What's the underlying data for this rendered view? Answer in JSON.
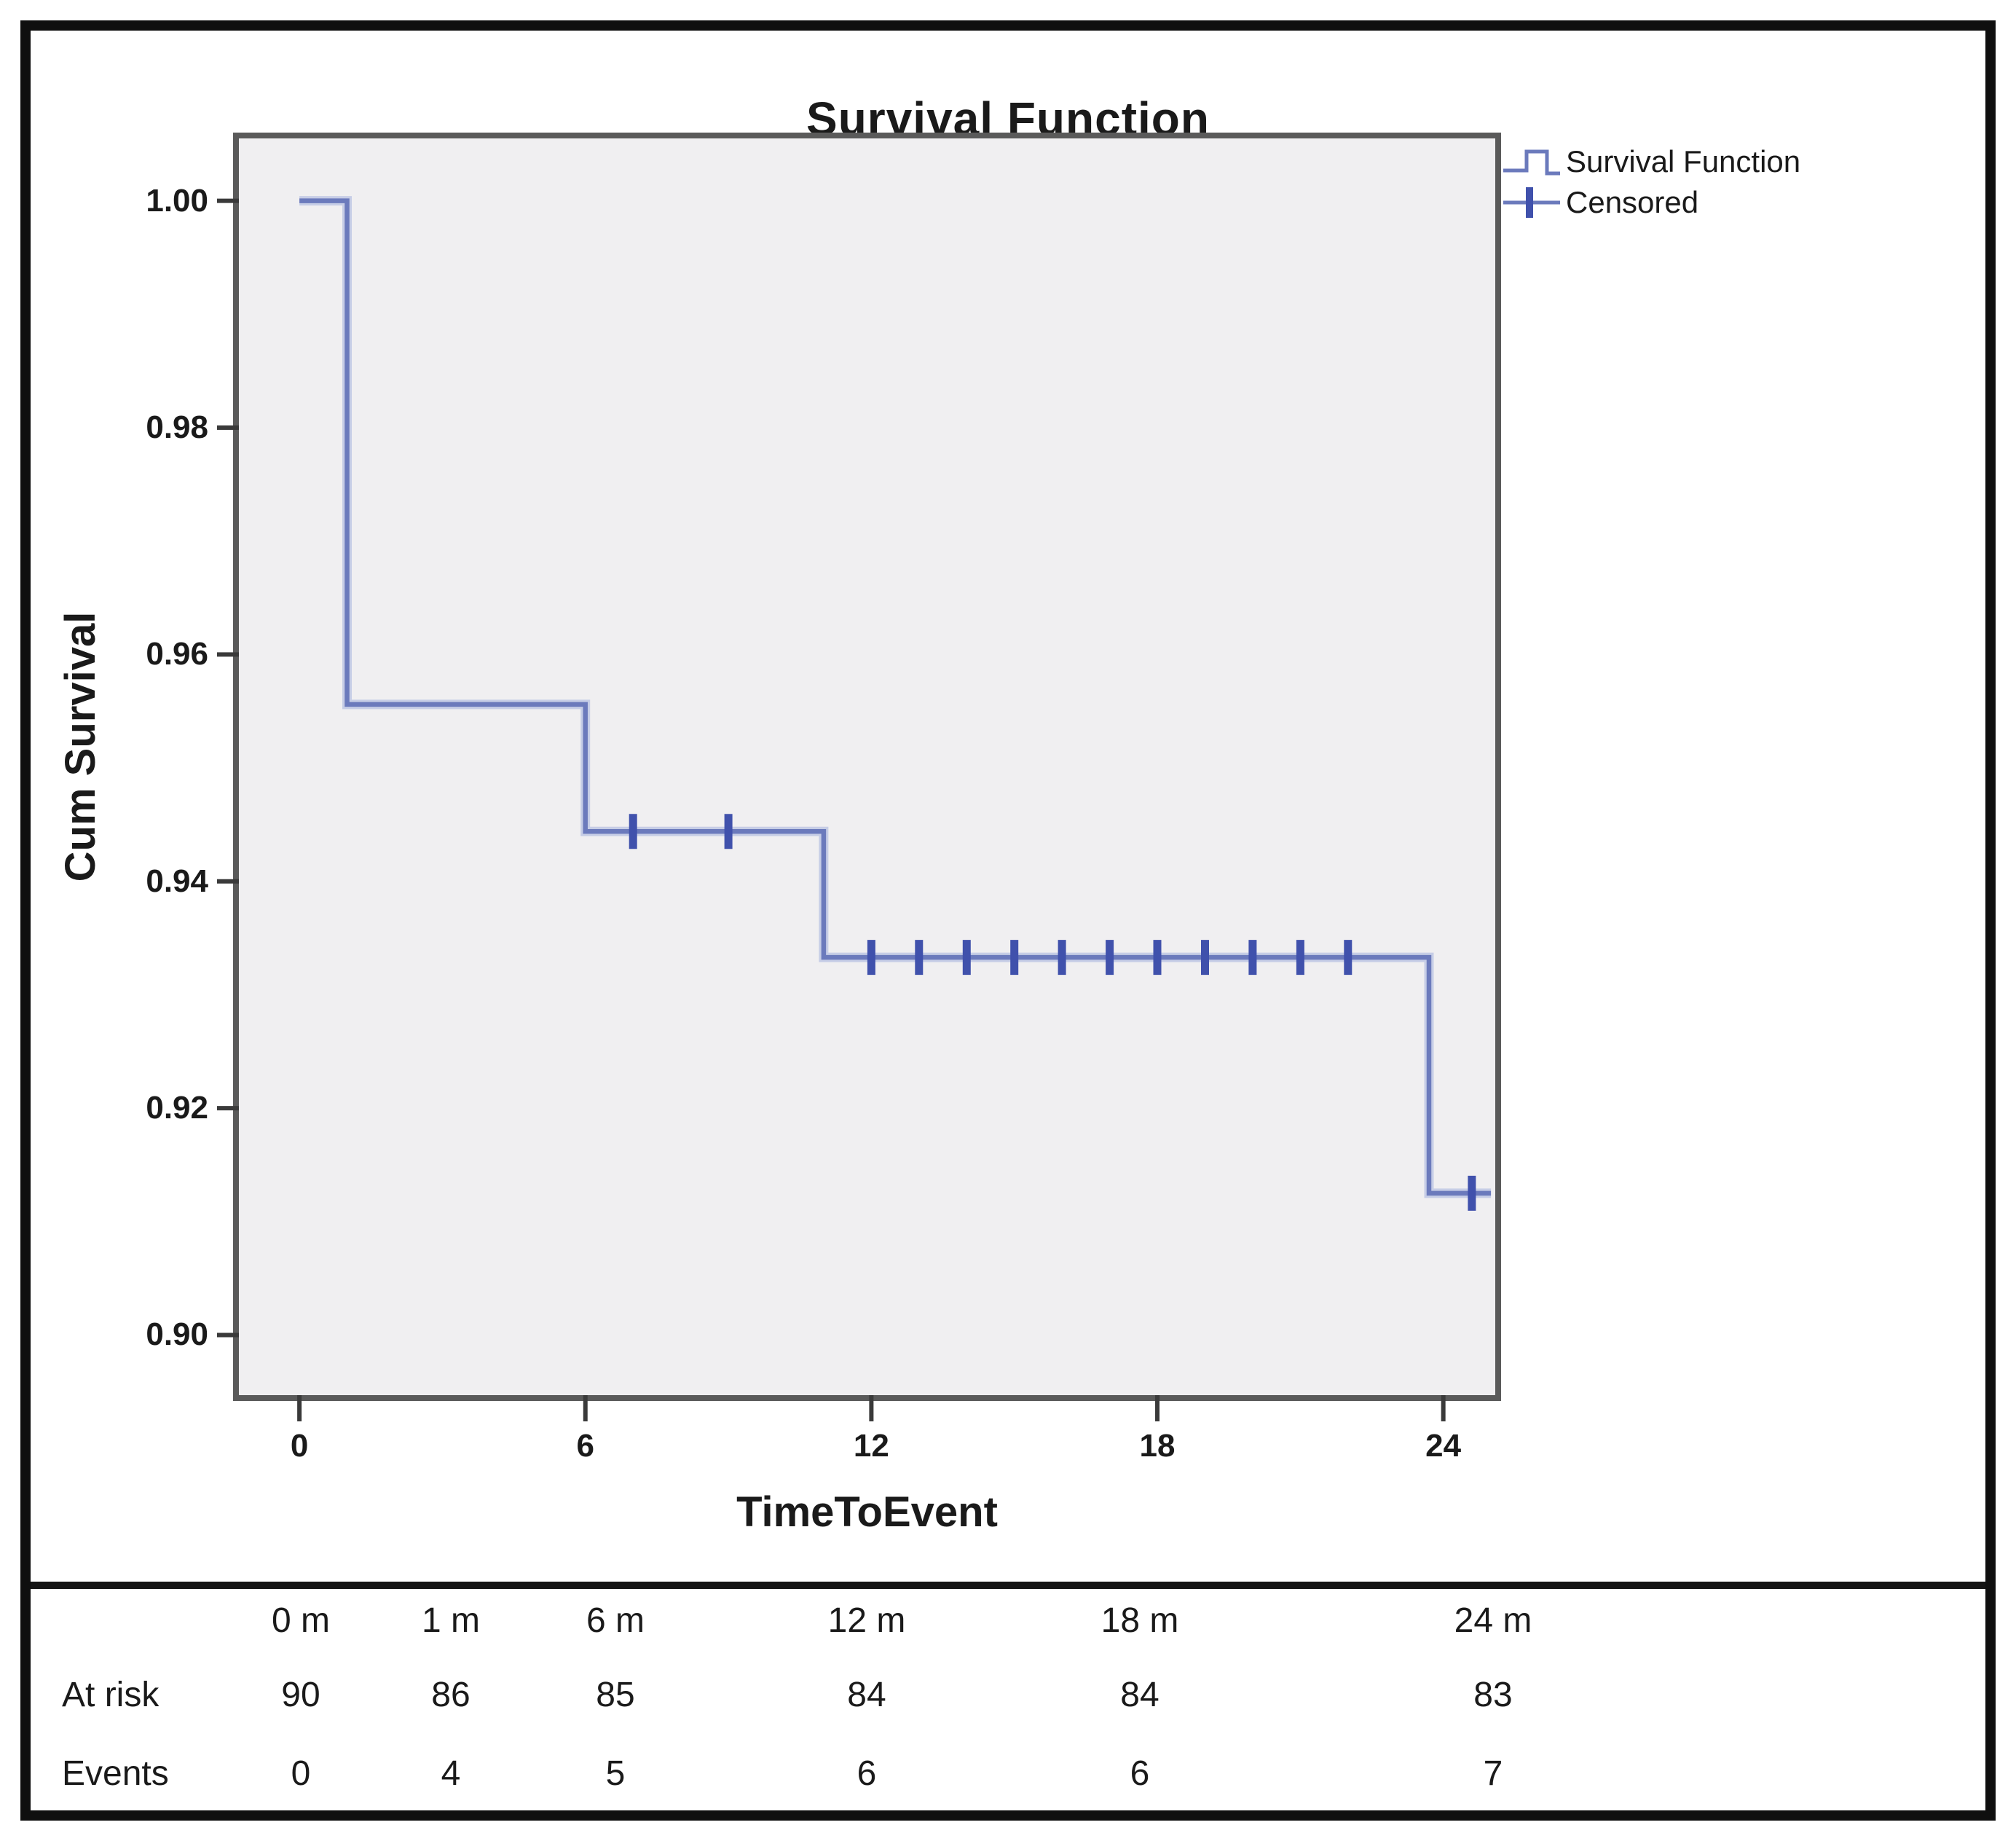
{
  "figure": {
    "title": "Survival Function"
  },
  "legend": {
    "items": [
      {
        "icon": "step-line",
        "label": "Survival Function"
      },
      {
        "icon": "plus-censored",
        "label": "Censored"
      }
    ]
  },
  "chart_data": {
    "type": "line",
    "subtype": "kaplan-meier-step",
    "title": "Survival Function",
    "xlabel": "TimeToEvent",
    "ylabel": "Cum Survival",
    "xlim": [
      -1.27,
      25.09
    ],
    "ylim": [
      0.8947,
      1.0055
    ],
    "grid": false,
    "legend_position": "top-right-outside",
    "x_ticks": [
      0,
      6,
      12,
      18,
      24
    ],
    "x_tick_labels": [
      "0",
      "6",
      "12",
      "18",
      "24"
    ],
    "y_ticks": [
      1.0,
      0.98,
      0.96,
      0.94,
      0.92,
      0.9
    ],
    "y_tick_labels": [
      "1.00",
      "0.98",
      "0.96",
      "0.94",
      "0.92",
      "0.90"
    ],
    "series": [
      {
        "name": "Survival Function",
        "steps": [
          [
            0,
            1.0
          ],
          [
            1,
            1.0
          ],
          [
            1,
            0.9556
          ],
          [
            6,
            0.9556
          ],
          [
            6,
            0.9444
          ],
          [
            11,
            0.9444
          ],
          [
            11,
            0.9333
          ],
          [
            23.7,
            0.9333
          ],
          [
            23.7,
            0.9125
          ],
          [
            25.0,
            0.9125
          ]
        ]
      }
    ],
    "censored": [
      [
        7,
        0.9444
      ],
      [
        9,
        0.9444
      ],
      [
        12,
        0.9333
      ],
      [
        13,
        0.9333
      ],
      [
        14,
        0.9333
      ],
      [
        15,
        0.9333
      ],
      [
        16,
        0.9333
      ],
      [
        17,
        0.9333
      ],
      [
        18,
        0.9333
      ],
      [
        19,
        0.9333
      ],
      [
        20,
        0.9333
      ],
      [
        21,
        0.9333
      ],
      [
        22,
        0.9333
      ],
      [
        24.6,
        0.9125
      ]
    ],
    "colors": {
      "line": "#6b7abc",
      "line_halo": "#c6cde6",
      "censor": "#4051ac",
      "plot_background": "#f0eff1",
      "plot_border": "#5a5a5a",
      "tick": "#3a3a3a"
    }
  },
  "risk_table": {
    "columns": [
      "0 m",
      "1 m",
      "6 m",
      "12 m",
      "18 m",
      "24 m"
    ],
    "rows": [
      {
        "label": "At risk",
        "values": [
          "90",
          "86",
          "85",
          "84",
          "84",
          "83"
        ]
      },
      {
        "label": "Events",
        "values": [
          "0",
          "4",
          "5",
          "6",
          "6",
          "7"
        ]
      }
    ]
  }
}
